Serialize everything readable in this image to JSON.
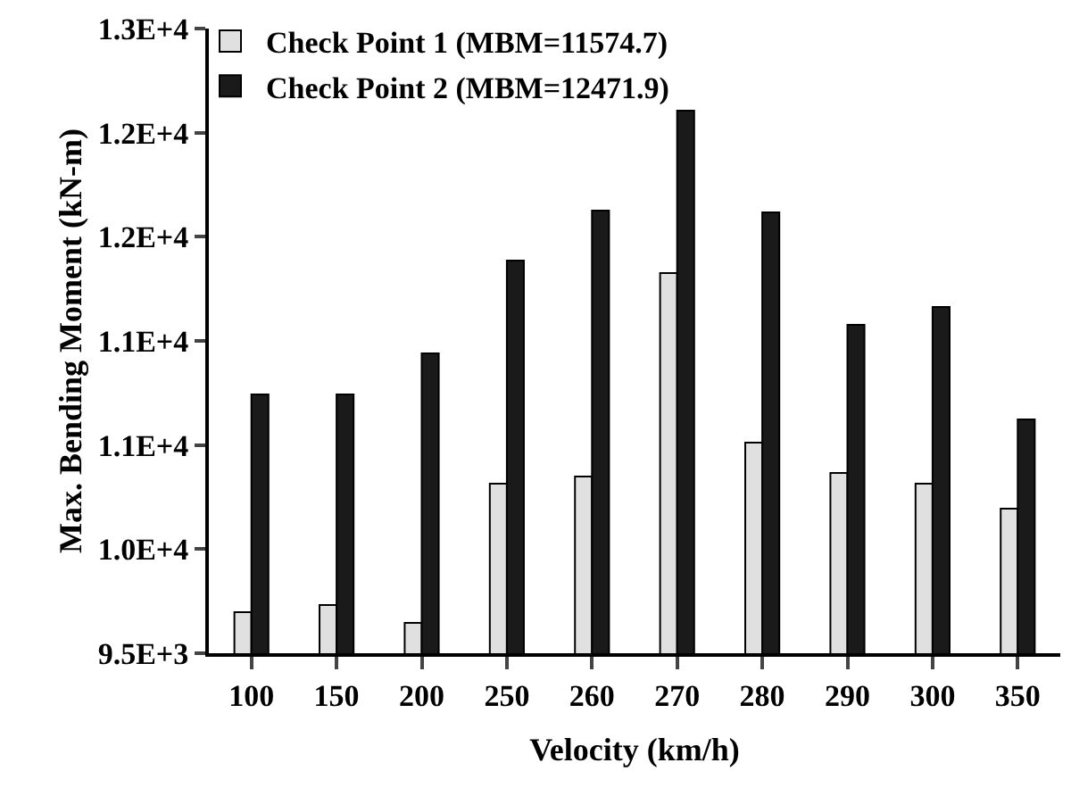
{
  "chart_data": {
    "type": "bar",
    "xlabel": "Velocity (km/h)",
    "ylabel": "Max. Bending Moment (kN-m)",
    "categories": [
      "100",
      "150",
      "200",
      "250",
      "260",
      "270",
      "280",
      "290",
      "300",
      "350"
    ],
    "series": [
      {
        "name": "Check Point 1 (MBM=11574.7)",
        "color": "#e0e0e0",
        "values": [
          9730,
          9770,
          9670,
          10450,
          10490,
          11630,
          10680,
          10510,
          10450,
          10310
        ]
      },
      {
        "name": "Check Point 2 (MBM=12471.9)",
        "color": "#1a1a1a",
        "values": [
          10950,
          10950,
          11180,
          11700,
          11980,
          12540,
          11970,
          11340,
          11440,
          10810
        ]
      }
    ],
    "ylim": [
      9500,
      13000
    ],
    "yticks": [
      {
        "value": 9500,
        "label": "9.5E+3"
      },
      {
        "value": 10083.3,
        "label": "1.0E+4"
      },
      {
        "value": 10666.7,
        "label": "1.1E+4"
      },
      {
        "value": 11250,
        "label": "1.1E+4"
      },
      {
        "value": 11833.3,
        "label": "1.2E+4"
      },
      {
        "value": 12416.7,
        "label": "1.2E+4"
      },
      {
        "value": 13000,
        "label": "1.3E+4"
      }
    ],
    "legend": "top left"
  }
}
